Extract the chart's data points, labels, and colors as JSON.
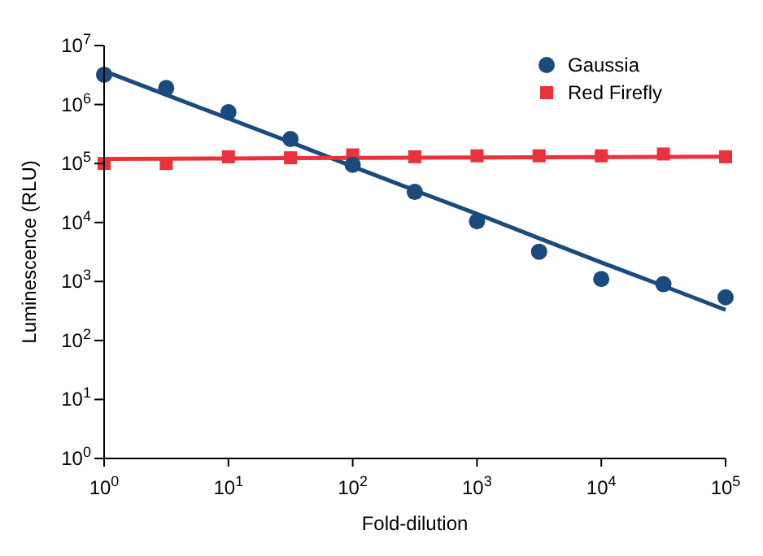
{
  "chart_data": {
    "type": "scatter",
    "xlabel": "Fold-dilution",
    "ylabel": "Luminescence (RLU)",
    "log": "xy",
    "grid": false,
    "legend": "top right",
    "x": [
      1,
      3.16,
      10,
      31.6,
      100,
      316,
      1000,
      3160,
      10000,
      31600,
      100000
    ],
    "series": [
      {
        "name": "Gaussia",
        "color": "#1a4a7e",
        "marker": "circle",
        "values": [
          3200000,
          1900000,
          740000,
          260000,
          95000,
          33000,
          10500,
          3200,
          1100,
          900,
          540
        ]
      },
      {
        "name": "Red Firefly",
        "color": "#e8323c",
        "marker": "square",
        "values": [
          100000,
          100000,
          130000,
          125000,
          140000,
          130000,
          135000,
          135000,
          135000,
          145000,
          130000
        ]
      },
      {
        "type": "line",
        "color": "#1a4a7e",
        "marker": "none",
        "values": [
          3700000,
          1460000,
          580000,
          230000,
          89000,
          35000,
          14000,
          5400,
          2100,
          840,
          330
        ]
      },
      {
        "type": "line",
        "color": "#e8323c",
        "marker": "none",
        "values": [
          120000,
          121000,
          122000,
          123000,
          124000,
          125000,
          126000,
          127000,
          128000,
          129000,
          130000
        ]
      }
    ],
    "xlim": [
      1,
      100000
    ],
    "ylim": [
      1,
      10000000
    ],
    "xticks": [
      {
        "value": 1,
        "label": "10$^{0}$"
      },
      {
        "value": 10,
        "label": "10$^{1}$"
      },
      {
        "value": 100,
        "label": "10$^{2}$"
      },
      {
        "value": 1000,
        "label": "10$^{3}$"
      },
      {
        "value": 10000,
        "label": "10$^{4}$"
      },
      {
        "value": 100000,
        "label": "10$^{5}$"
      }
    ],
    "yticks": [
      {
        "value": 1,
        "label": "10$^{0}$"
      },
      {
        "value": 10,
        "label": "10$^{1}$"
      },
      {
        "value": 100,
        "label": "10$^{2}$"
      },
      {
        "value": 1000,
        "label": "10$^{3}$"
      },
      {
        "value": 10000,
        "label": "10$^{4}$"
      },
      {
        "value": 100000,
        "label": "10$^{5}$"
      },
      {
        "value": 1000000,
        "label": "10$^{6}$"
      },
      {
        "value": 10000000,
        "label": "10$^{7}$"
      }
    ]
  }
}
